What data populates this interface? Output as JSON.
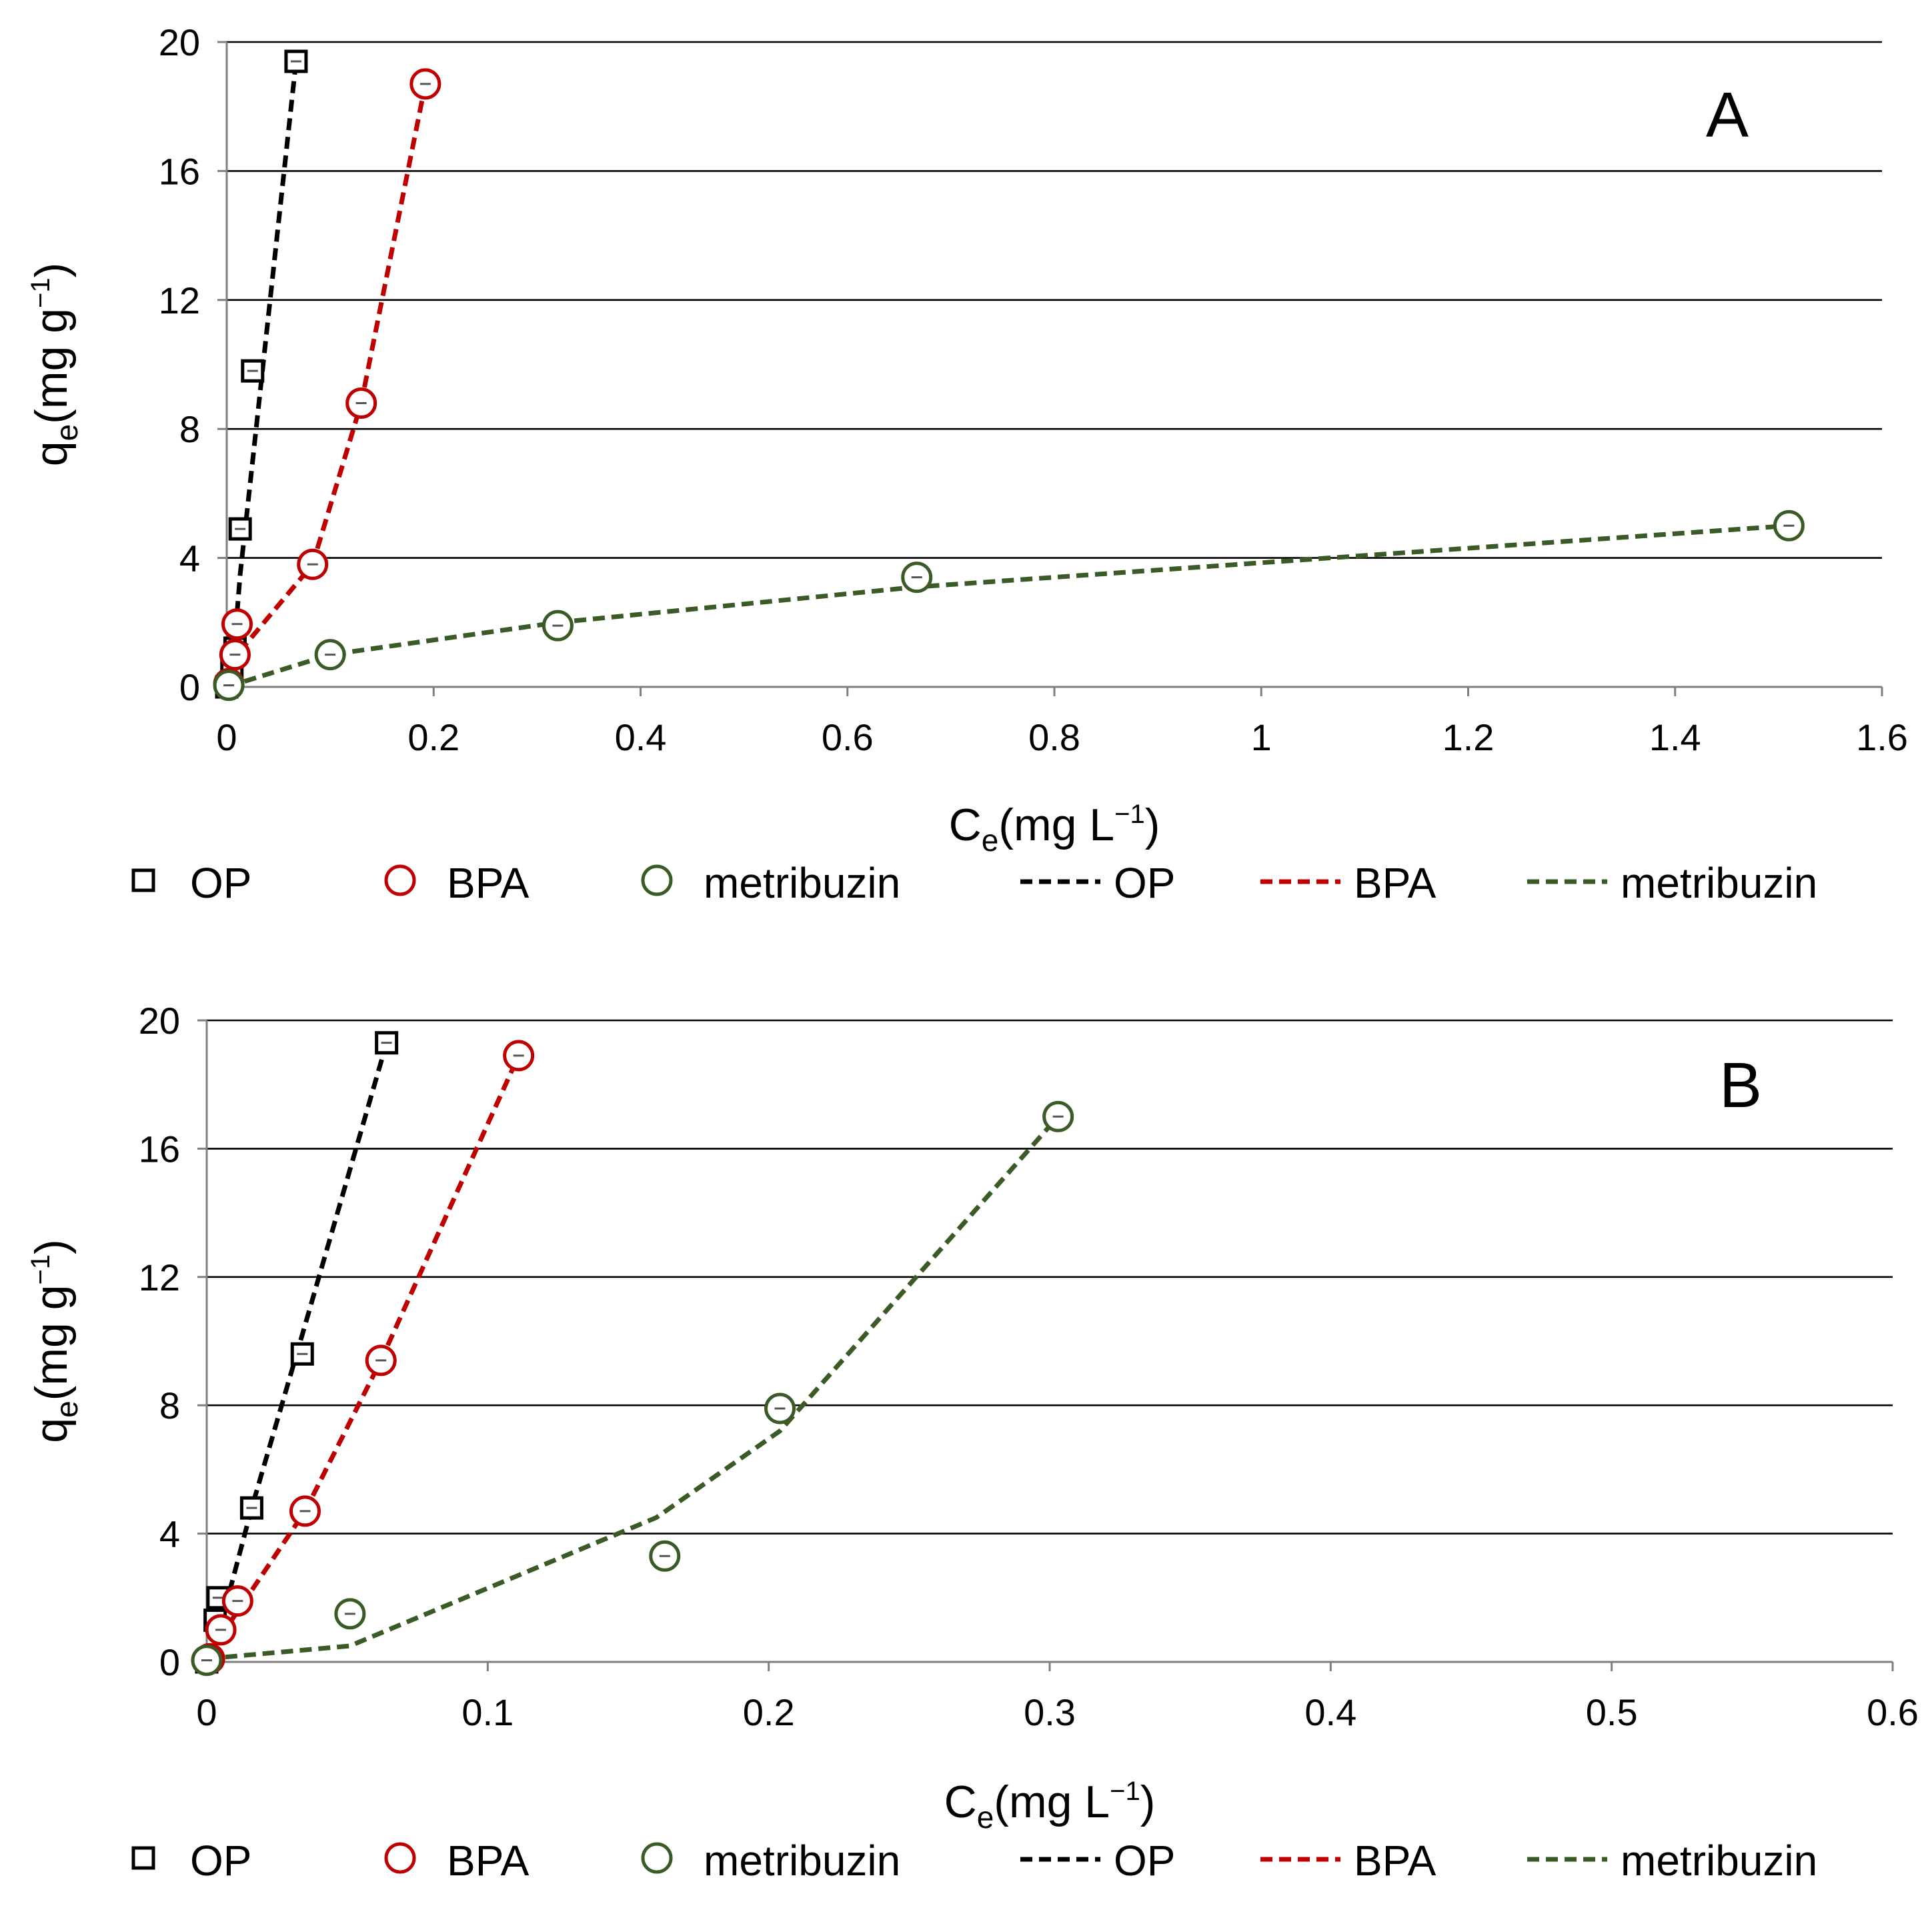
{
  "chart_data": [
    {
      "type": "scatter",
      "panel_label": "A",
      "xlabel": {
        "main": "C",
        "sub": "e",
        "unit_before": "(mg L",
        "sup": "−1",
        "unit_after": ")"
      },
      "ylabel": {
        "main": "q",
        "sub": "e",
        "unit_before": "(mg g",
        "sup": "−1",
        "unit_after": ")"
      },
      "xlim": [
        0,
        1.6
      ],
      "ylim": [
        0,
        20
      ],
      "x_ticks": [
        0,
        0.2,
        0.4,
        0.6,
        0.8,
        1,
        1.2,
        1.4,
        1.6
      ],
      "x_tick_labels": [
        "0",
        "0.2",
        "0.4",
        "0.6",
        "0.8",
        "1",
        "1.2",
        "1.4",
        "1.6"
      ],
      "y_ticks": [
        0,
        4,
        8,
        12,
        16,
        20
      ],
      "y_tick_labels": [
        "0",
        "4",
        "8",
        "12",
        "16",
        "20"
      ],
      "grid": "horizontal",
      "series": [
        {
          "name": "OP",
          "marker": "square",
          "color": "#000000",
          "x": [
            0,
            0.005,
            0.008,
            0.013,
            0.025,
            0.067
          ],
          "y": [
            0,
            0.5,
            1.2,
            4.9,
            9.8,
            19.4
          ],
          "fit": {
            "x": [
              0,
              0.008,
              0.013,
              0.025,
              0.067
            ],
            "y": [
              0,
              1.5,
              3.5,
              7.0,
              19.4
            ]
          }
        },
        {
          "name": "BPA",
          "marker": "circle",
          "color": "#c00000",
          "x": [
            0.002,
            0.008,
            0.01,
            0.083,
            0.13,
            0.192
          ],
          "y": [
            0.1,
            1.0,
            1.95,
            3.8,
            8.8,
            18.7
          ],
          "fit": {
            "x": [
              0,
              0.01,
              0.083,
              0.13,
              0.192
            ],
            "y": [
              0,
              1.0,
              3.8,
              8.8,
              18.7
            ]
          }
        },
        {
          "name": "metribuzin",
          "marker": "circle",
          "color": "#3a5a26",
          "x": [
            0.002,
            0.1,
            0.32,
            0.667,
            1.51
          ],
          "y": [
            0.05,
            1.0,
            1.9,
            3.4,
            5.0
          ],
          "fit": {
            "x": [
              0,
              0.1,
              0.32,
              0.667,
              1.51
            ],
            "y": [
              0,
              1.0,
              2.0,
              3.1,
              5.0
            ]
          }
        }
      ],
      "legend": [
        "OP",
        "BPA",
        "metribuzin",
        "OP",
        "BPA",
        "metribuzin"
      ]
    },
    {
      "type": "scatter",
      "panel_label": "B",
      "xlabel": {
        "main": "C",
        "sub": "e",
        "unit_before": "(mg L",
        "sup": "−1",
        "unit_after": ")"
      },
      "ylabel": {
        "main": "q",
        "sub": "e",
        "unit_before": "(mg g",
        "sup": "−1",
        "unit_after": ")"
      },
      "xlim": [
        0,
        0.6
      ],
      "ylim": [
        0,
        20
      ],
      "x_ticks": [
        0,
        0.1,
        0.2,
        0.3,
        0.4,
        0.5,
        0.6
      ],
      "x_tick_labels": [
        "0",
        "0.1",
        "0.2",
        "0.3",
        "0.4",
        "0.5",
        "0.6"
      ],
      "y_ticks": [
        0,
        4,
        8,
        12,
        16,
        20
      ],
      "y_tick_labels": [
        "0",
        "4",
        "8",
        "12",
        "16",
        "20"
      ],
      "grid": "horizontal",
      "series": [
        {
          "name": "OP",
          "marker": "square",
          "color": "#000000",
          "x": [
            0,
            0.003,
            0.004,
            0.016,
            0.034,
            0.064
          ],
          "y": [
            0,
            1.3,
            2.0,
            4.8,
            9.6,
            19.3
          ],
          "fit": {
            "x": [
              0.003,
              0.016,
              0.034,
              0.064
            ],
            "y": [
              0.5,
              4.8,
              10.2,
              19.3
            ]
          }
        },
        {
          "name": "BPA",
          "marker": "circle",
          "color": "#c00000",
          "x": [
            0.001,
            0.005,
            0.011,
            0.035,
            0.062,
            0.111
          ],
          "y": [
            0.1,
            1.0,
            1.9,
            4.7,
            9.4,
            18.9
          ],
          "fit": {
            "x": [
              0.005,
              0.035,
              0.062,
              0.111
            ],
            "y": [
              0.8,
              4.7,
              9.4,
              18.9
            ]
          }
        },
        {
          "name": "metribuzin",
          "marker": "circle",
          "color": "#3a5a26",
          "x": [
            0,
            0.051,
            0.163,
            0.204,
            0.303
          ],
          "y": [
            0.05,
            1.5,
            3.3,
            7.9,
            17.0
          ],
          "fit": {
            "x": [
              0,
              0.051,
              0.16,
              0.204,
              0.303
            ],
            "y": [
              0.1,
              0.5,
              4.5,
              7.2,
              17.0
            ]
          }
        }
      ],
      "legend": [
        "OP",
        "BPA",
        "metribuzin",
        "OP",
        "BPA",
        "metribuzin"
      ]
    }
  ]
}
